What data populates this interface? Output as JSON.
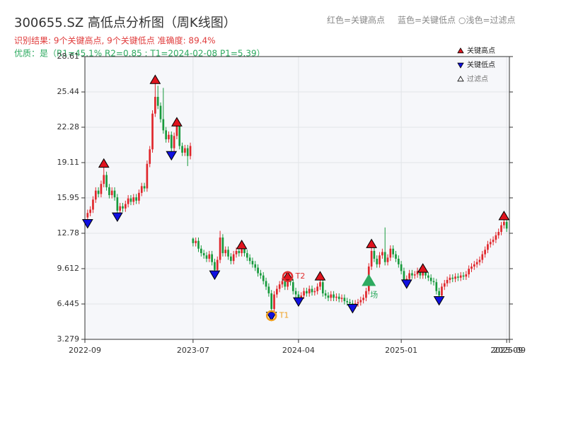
{
  "chart_data": {
    "type": "candlestick",
    "title": "300655.SZ 高低点分析图（周K线图）",
    "subtitle": "识别结果: 9个关键高点, 9个关键低点  准确度: 89.4%",
    "quality_note": "优质：是（R1=45.1%  R2=0.85 ; T1=2024-02-08 P1=5.39）",
    "header_legend": [
      "红色=关键高点",
      "蓝色=关键低点",
      "○浅色=过滤点"
    ],
    "up_color": "#e0262b",
    "down_color": "#179a3c",
    "xlim": [
      -1,
      156
    ],
    "xticks": [
      {
        "value": -1,
        "label": "2022-09"
      },
      {
        "value": 39,
        "label": "2023-07"
      },
      {
        "value": 78,
        "label": "2024-04"
      },
      {
        "value": 116,
        "label": "2025-01"
      },
      {
        "value": 155,
        "label": "2025-09"
      },
      {
        "value": 156,
        "label": "2025-09"
      }
    ],
    "ylim": [
      3.279,
      28.61
    ],
    "yticks": [
      3.279,
      6.445,
      9.612,
      12.78,
      15.95,
      19.11,
      22.28,
      25.44,
      28.61
    ],
    "grid": true,
    "legend_position": "upper right",
    "x": [
      0,
      1,
      2,
      3,
      4,
      5,
      6,
      7,
      8,
      9,
      10,
      11,
      12,
      13,
      14,
      15,
      16,
      17,
      18,
      19,
      20,
      21,
      22,
      23,
      24,
      25,
      26,
      27,
      28,
      29,
      30,
      31,
      32,
      33,
      34,
      35,
      36,
      37,
      38,
      39,
      40,
      41,
      42,
      43,
      44,
      45,
      46,
      47,
      48,
      49,
      50,
      51,
      52,
      53,
      54,
      55,
      56,
      57,
      58,
      59,
      60,
      61,
      62,
      63,
      64,
      65,
      66,
      67,
      68,
      69,
      70,
      71,
      72,
      73,
      74,
      75,
      76,
      77,
      78,
      79,
      80,
      81,
      82,
      83,
      84,
      85,
      86,
      87,
      88,
      89,
      90,
      91,
      92,
      93,
      94,
      95,
      96,
      97,
      98,
      99,
      100,
      101,
      102,
      103,
      104,
      105,
      106,
      107,
      108,
      109,
      110,
      111,
      112,
      113,
      114,
      115,
      116,
      117,
      118,
      119,
      120,
      121,
      122,
      123,
      124,
      125,
      126,
      127,
      128,
      129,
      130,
      131,
      132,
      133,
      134,
      135,
      136,
      137,
      138,
      139,
      140,
      141,
      142,
      143,
      144,
      145,
      146,
      147,
      148,
      149,
      150,
      151,
      152,
      153,
      154,
      155
    ],
    "open": [
      14.2,
      14.6,
      14.9,
      15.8,
      16.6,
      16.3,
      17.2,
      18.0,
      16.9,
      16.2,
      16.6,
      16.0,
      14.8,
      15.2,
      15.0,
      15.4,
      15.9,
      15.6,
      16.0,
      15.7,
      16.4,
      17.0,
      16.8,
      19.0,
      20.3,
      23.5,
      25.0,
      24.2,
      23.0,
      22.0,
      21.2,
      21.6,
      20.4,
      21.5,
      22.4,
      20.6,
      20.0,
      20.4,
      19.7,
      12.3,
      11.9,
      12.1,
      11.4,
      11.0,
      10.8,
      10.5,
      10.9,
      10.2,
      9.5,
      10.4,
      12.4,
      11.0,
      11.3,
      10.7,
      10.3,
      10.9,
      11.2,
      11.0,
      11.5,
      11.0,
      10.6,
      10.3,
      10.0,
      9.7,
      9.2,
      9.0,
      8.5,
      8.0,
      7.4,
      6.0,
      7.3,
      7.8,
      8.2,
      8.5,
      8.0,
      8.6,
      8.4,
      7.6,
      7.3,
      7.0,
      7.2,
      7.6,
      7.4,
      7.8,
      7.5,
      7.6,
      8.0,
      8.4,
      7.4,
      7.2,
      7.0,
      7.3,
      7.0,
      7.1,
      6.9,
      7.0,
      6.7,
      6.6,
      6.5,
      6.3,
      6.5,
      6.6,
      6.8,
      7.0,
      7.6,
      9.8,
      11.2,
      10.5,
      10.0,
      10.8,
      11.1,
      10.2,
      10.6,
      11.4,
      10.9,
      10.5,
      10.0,
      9.4,
      8.6,
      8.7,
      9.2,
      9.0,
      9.1,
      9.4,
      9.0,
      9.3,
      9.0,
      8.8,
      8.5,
      8.4,
      7.6,
      7.2,
      8.0,
      8.3,
      8.6,
      8.8,
      8.7,
      8.9,
      8.8,
      9.0,
      8.9,
      9.1,
      9.6,
      9.8,
      10.0,
      10.2,
      10.4,
      10.9,
      11.3,
      11.8,
      12.0,
      12.2,
      12.6,
      12.9,
      13.5,
      13.8
    ],
    "high": [
      14.9,
      15.2,
      16.1,
      16.9,
      16.9,
      17.5,
      19.0,
      18.3,
      17.2,
      16.9,
      16.9,
      16.3,
      15.5,
      15.5,
      15.7,
      16.2,
      16.2,
      16.3,
      16.3,
      16.7,
      17.3,
      17.3,
      19.3,
      20.6,
      23.8,
      26.5,
      26.0,
      24.5,
      25.8,
      22.3,
      21.9,
      21.9,
      21.8,
      22.7,
      22.7,
      20.9,
      20.7,
      20.7,
      20.9,
      12.4,
      12.4,
      12.4,
      11.7,
      11.3,
      11.1,
      11.2,
      11.2,
      10.5,
      10.7,
      13.0,
      12.7,
      11.6,
      11.6,
      11.0,
      11.2,
      11.5,
      11.5,
      11.7,
      11.8,
      11.3,
      10.9,
      10.6,
      10.3,
      10.0,
      9.5,
      9.3,
      8.8,
      8.3,
      7.7,
      7.6,
      8.1,
      8.5,
      8.8,
      8.8,
      8.9,
      8.9,
      8.7,
      7.9,
      7.6,
      7.5,
      7.9,
      7.9,
      8.1,
      8.1,
      7.9,
      8.3,
      8.9,
      8.7,
      7.7,
      7.5,
      7.6,
      7.6,
      7.4,
      7.4,
      7.3,
      7.3,
      7.0,
      6.9,
      6.8,
      6.8,
      6.9,
      7.1,
      7.3,
      7.9,
      10.1,
      11.8,
      11.5,
      10.8,
      11.1,
      11.4,
      13.3,
      10.9,
      11.7,
      11.7,
      11.2,
      10.8,
      10.3,
      9.7,
      9.0,
      9.5,
      9.5,
      9.4,
      9.7,
      9.7,
      9.6,
      9.6,
      9.3,
      9.1,
      8.8,
      8.7,
      7.9,
      8.3,
      8.6,
      8.9,
      9.1,
      9.1,
      9.2,
      9.2,
      9.3,
      9.3,
      9.4,
      9.9,
      10.1,
      10.3,
      10.5,
      10.7,
      11.2,
      11.6,
      12.1,
      12.3,
      12.5,
      12.9,
      13.2,
      13.8,
      14.3,
      14.1
    ],
    "low": [
      13.7,
      14.3,
      14.6,
      15.5,
      16.0,
      16.0,
      16.9,
      16.6,
      15.9,
      15.9,
      15.7,
      14.3,
      14.5,
      14.7,
      14.7,
      15.1,
      15.3,
      15.3,
      15.4,
      15.4,
      16.1,
      16.5,
      16.5,
      18.7,
      20.0,
      23.2,
      23.9,
      22.7,
      21.7,
      20.9,
      20.9,
      19.8,
      20.1,
      21.2,
      20.3,
      19.7,
      19.7,
      18.8,
      19.4,
      11.6,
      11.6,
      11.1,
      10.7,
      10.5,
      10.2,
      10.2,
      9.9,
      9.1,
      9.2,
      10.1,
      10.7,
      10.7,
      10.4,
      10.0,
      10.0,
      10.6,
      10.7,
      10.7,
      10.7,
      10.3,
      10.0,
      9.7,
      9.4,
      8.9,
      8.7,
      8.2,
      7.7,
      7.1,
      5.4,
      5.7,
      7.0,
      7.5,
      7.9,
      7.7,
      7.7,
      8.1,
      7.3,
      7.0,
      6.7,
      6.7,
      6.9,
      7.1,
      7.1,
      7.2,
      7.2,
      7.3,
      7.7,
      7.1,
      6.9,
      6.7,
      6.7,
      6.7,
      6.7,
      6.6,
      6.6,
      6.4,
      6.3,
      6.2,
      6.1,
      6.0,
      6.2,
      6.3,
      6.5,
      6.7,
      7.3,
      9.5,
      10.2,
      9.7,
      9.7,
      10.5,
      9.9,
      9.9,
      10.3,
      10.6,
      10.2,
      9.7,
      9.1,
      8.3,
      8.3,
      8.4,
      8.7,
      8.7,
      8.8,
      8.7,
      8.7,
      8.7,
      8.5,
      8.2,
      8.1,
      7.3,
      6.8,
      6.9,
      7.7,
      8.0,
      8.3,
      8.4,
      8.4,
      8.5,
      8.5,
      8.6,
      8.6,
      8.8,
      9.3,
      9.5,
      9.7,
      9.9,
      10.1,
      10.6,
      11.0,
      11.5,
      11.7,
      11.9,
      12.3,
      12.6,
      13.2,
      12.9
    ],
    "close": [
      14.6,
      14.9,
      15.8,
      16.6,
      16.3,
      17.2,
      18.0,
      16.9,
      16.2,
      16.6,
      16.0,
      14.8,
      15.2,
      15.0,
      15.4,
      15.9,
      15.6,
      16.0,
      15.7,
      16.4,
      17.0,
      16.8,
      19.0,
      20.3,
      23.5,
      25.0,
      24.2,
      23.0,
      22.0,
      21.2,
      21.6,
      20.4,
      21.5,
      22.4,
      20.6,
      20.0,
      20.4,
      19.7,
      20.6,
      11.9,
      12.1,
      11.4,
      11.0,
      10.8,
      10.5,
      10.9,
      10.2,
      9.5,
      10.4,
      12.4,
      11.0,
      11.3,
      10.7,
      10.3,
      10.9,
      11.2,
      11.0,
      11.5,
      11.0,
      10.6,
      10.3,
      10.0,
      9.7,
      9.2,
      9.0,
      8.5,
      8.0,
      7.4,
      6.0,
      7.3,
      7.8,
      8.2,
      8.5,
      8.0,
      8.6,
      8.4,
      7.6,
      7.3,
      7.0,
      7.2,
      7.6,
      7.4,
      7.8,
      7.5,
      7.6,
      8.0,
      8.4,
      7.4,
      7.2,
      7.0,
      7.3,
      7.0,
      7.1,
      6.9,
      7.0,
      6.7,
      6.6,
      6.5,
      6.3,
      6.5,
      6.6,
      6.8,
      7.0,
      7.6,
      9.8,
      11.2,
      10.5,
      10.0,
      10.8,
      11.1,
      10.2,
      10.6,
      11.4,
      10.9,
      10.5,
      10.0,
      9.4,
      8.6,
      8.7,
      9.2,
      9.0,
      9.1,
      9.4,
      9.0,
      9.3,
      9.0,
      8.8,
      8.5,
      8.4,
      7.6,
      7.2,
      8.0,
      8.3,
      8.6,
      8.8,
      8.7,
      8.9,
      8.8,
      9.0,
      8.9,
      9.1,
      9.6,
      9.8,
      10.0,
      10.2,
      10.4,
      10.9,
      11.3,
      11.8,
      12.0,
      12.2,
      12.6,
      12.9,
      13.5,
      13.8,
      13.2
    ],
    "marker_series": [
      {
        "name": "关键高点",
        "color": "#e0141e",
        "shape": "up",
        "x": [
          6,
          25,
          33,
          57,
          74,
          86,
          105,
          124,
          154
        ],
        "values": [
          19.0,
          26.5,
          22.7,
          11.7,
          8.9,
          8.9,
          11.8,
          9.6,
          14.3
        ]
      },
      {
        "name": "关键低点",
        "color": "#1010e0",
        "shape": "down",
        "x": [
          0,
          11,
          31,
          47,
          68,
          78,
          98,
          118,
          130
        ],
        "values": [
          13.7,
          14.3,
          19.8,
          9.1,
          5.4,
          6.7,
          6.1,
          8.3,
          6.8
        ]
      },
      {
        "name": "过滤点",
        "color": "#ffffff",
        "shape": "up",
        "x": [],
        "values": []
      }
    ],
    "annotations": [
      {
        "text": "T1",
        "x": 68,
        "value": 5.4,
        "color": "#f0a020",
        "shape": "circle"
      },
      {
        "text": "T2",
        "x": 74,
        "value": 8.9,
        "color": "#e03030",
        "shape": "circle"
      },
      {
        "text": "场",
        "x": 104,
        "value": 8.5,
        "color": "#2eaa60",
        "shape": "triangle"
      }
    ]
  }
}
